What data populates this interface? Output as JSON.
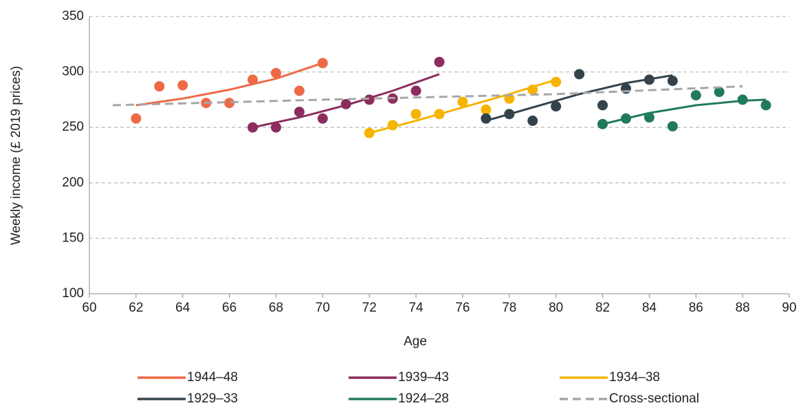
{
  "chart_data": {
    "type": "scatter",
    "x_label": "Age",
    "y_label": "Weekly income (£ 2019 prices)",
    "xlim": [
      60,
      90
    ],
    "xticks": [
      60,
      62,
      64,
      66,
      68,
      70,
      72,
      74,
      76,
      78,
      80,
      82,
      84,
      86,
      88,
      90
    ],
    "ylim": [
      100,
      350
    ],
    "yticks": [
      100,
      150,
      200,
      250,
      300,
      350
    ],
    "grid": true,
    "legend": "bottom",
    "series": [
      {
        "name": "1944–48",
        "color": "#ee6a46",
        "x": [
          62,
          63,
          64,
          65,
          66,
          67,
          68,
          69,
          70
        ],
        "values": [
          258,
          287,
          288,
          272,
          272,
          293,
          299,
          283,
          308
        ],
        "fit_x": [
          62,
          64,
          66,
          68,
          70
        ],
        "fit_values": [
          270,
          276,
          284,
          294,
          308
        ]
      },
      {
        "name": "1939–43",
        "color": "#8c2d5d",
        "x": [
          67,
          68,
          69,
          70,
          71,
          72,
          73,
          74,
          75
        ],
        "values": [
          250,
          250,
          264,
          258,
          271,
          275,
          276,
          283,
          309
        ],
        "fit_x": [
          67,
          69,
          71,
          73,
          75
        ],
        "fit_values": [
          250,
          259,
          270,
          283,
          298
        ]
      },
      {
        "name": "1934–38",
        "color": "#f4b400",
        "x": [
          72,
          73,
          74,
          75,
          76,
          77,
          78,
          79,
          80
        ],
        "values": [
          245,
          252,
          262,
          262,
          273,
          266,
          276,
          284,
          291
        ],
        "fit_x": [
          72,
          74,
          76,
          78,
          80
        ],
        "fit_values": [
          245,
          256,
          268,
          280,
          293
        ]
      },
      {
        "name": "1929–33",
        "color": "#33424b",
        "x": [
          77,
          78,
          79,
          80,
          81,
          82,
          83,
          84,
          85
        ],
        "values": [
          258,
          262,
          256,
          269,
          298,
          270,
          285,
          293,
          292
        ],
        "fit_x": [
          77,
          79,
          81,
          83,
          85
        ],
        "fit_values": [
          256,
          268,
          280,
          290,
          297
        ]
      },
      {
        "name": "1924–28",
        "color": "#217a5c",
        "x": [
          82,
          83,
          84,
          85,
          86,
          87,
          88,
          89
        ],
        "values": [
          253,
          258,
          259,
          251,
          279,
          282,
          275,
          270
        ],
        "fit_x": [
          82,
          84,
          86,
          88,
          89
        ],
        "fit_values": [
          253,
          263,
          270,
          274,
          275
        ]
      },
      {
        "name": "Cross-sectional",
        "color": "#a6a6a6",
        "dashed": true,
        "x": [
          61,
          70,
          80,
          88
        ],
        "values": [
          270,
          275,
          280,
          287
        ]
      }
    ]
  }
}
